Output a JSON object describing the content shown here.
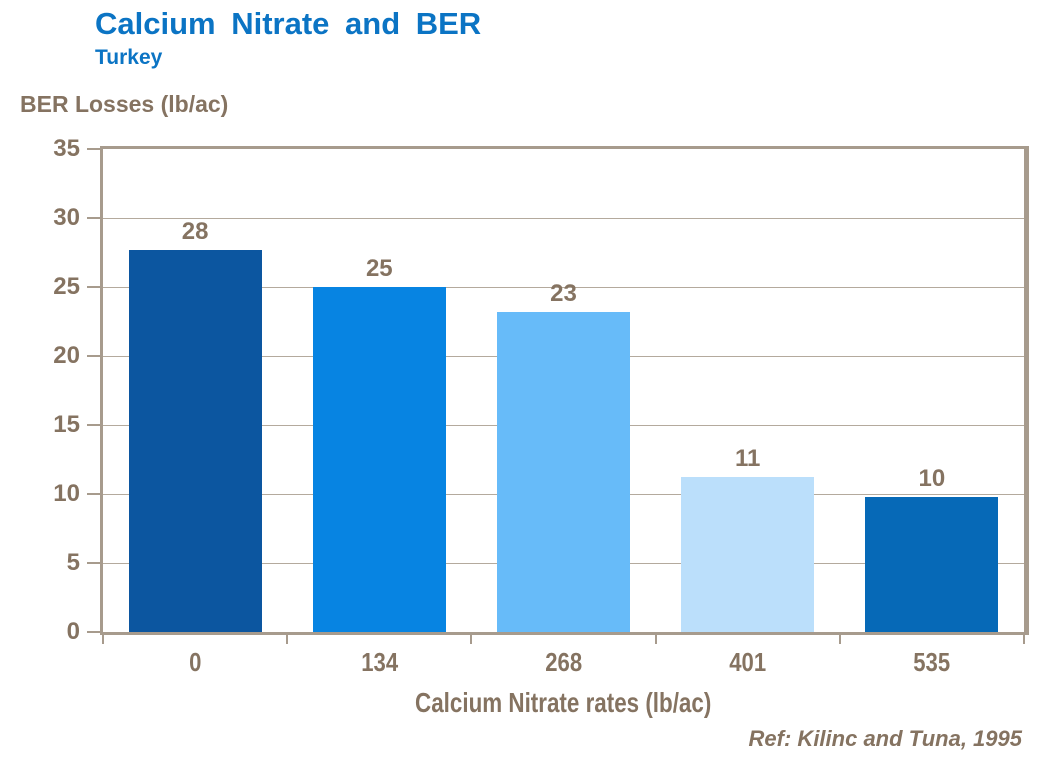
{
  "header": {
    "title": "Calcium Nitrate and BER",
    "subtitle": "Turkey"
  },
  "chart_data": {
    "type": "bar",
    "title": "Calcium Nitrate and BER",
    "subtitle": "Turkey",
    "xlabel": "Calcium Nitrate rates (lb/ac)",
    "ylabel": "BER Losses (lb/ac)",
    "categories": [
      "0",
      "134",
      "268",
      "401",
      "535"
    ],
    "values": [
      28,
      25,
      23,
      11,
      10
    ],
    "plotted_values": [
      27.7,
      25.0,
      23.2,
      11.2,
      9.8
    ],
    "bar_colors": [
      "#0C56A0",
      "#0784E2",
      "#67BBF9",
      "#BBDFFB",
      "#0669B7"
    ],
    "ylim": [
      0,
      35
    ],
    "yticks": [
      0,
      5,
      10,
      15,
      20,
      25,
      30,
      35
    ],
    "grid": true,
    "legend": null,
    "annotation": "Ref: Kilinc and Tuna, 1995",
    "colors": {
      "title_blue": "#0B74C4",
      "axis_text_brown": "#857361",
      "axis_line": "#A79B8D",
      "gridline": "#B4AA9D",
      "background": "#FFFFFF"
    }
  },
  "footer": {
    "reference": "Ref: Kilinc and Tuna, 1995"
  }
}
